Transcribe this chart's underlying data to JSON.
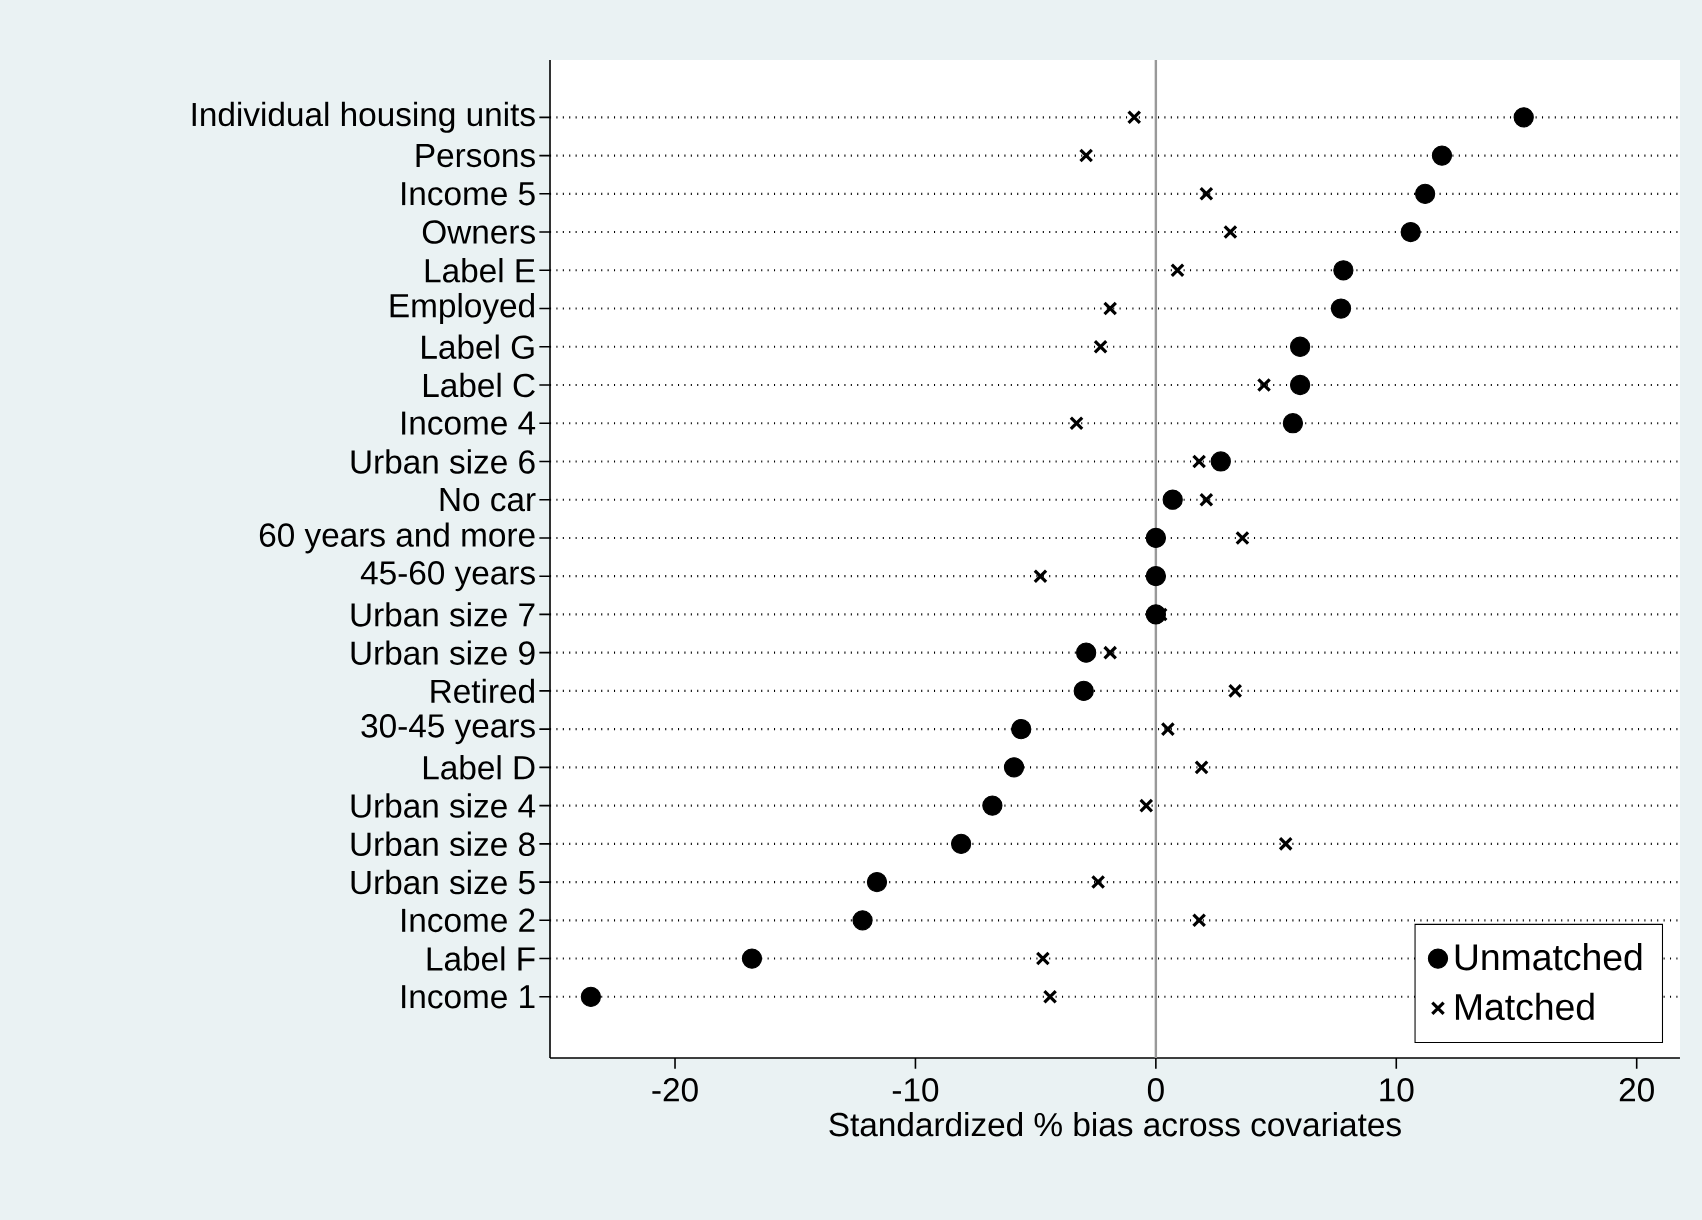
{
  "chart_data": {
    "type": "scatter",
    "orientation": "horizontal",
    "xlabel": "Standardized % bias across covariates",
    "categories": [
      "Individual housing units",
      "Persons",
      "Income 5",
      "Owners",
      "Label E",
      "Employed",
      "Label G",
      "Label C",
      "Income 4",
      "Urban size 6",
      "No car",
      "60 years and more",
      "45-60 years",
      "Urban size 7",
      "Urban size 9",
      "Retired",
      "30-45 years",
      "Label D",
      "Urban size 4",
      "Urban size 8",
      "Urban size 5",
      "Income 2",
      "Label F",
      "Income 1"
    ],
    "series": [
      {
        "name": "Unmatched",
        "color": "#000000",
        "marker": "circle",
        "values": [
          15.3,
          11.9,
          11.2,
          10.6,
          7.8,
          7.7,
          6.0,
          6.0,
          5.7,
          2.7,
          0.7,
          0.0,
          0.0,
          0.0,
          -2.9,
          -3.0,
          -5.6,
          -5.9,
          -6.8,
          -8.1,
          -11.6,
          -12.2,
          -16.8,
          -23.5
        ]
      },
      {
        "name": "Matched",
        "color": "#000000",
        "marker": "cross",
        "values": [
          -0.9,
          -2.9,
          2.1,
          3.1,
          0.9,
          -1.9,
          -2.3,
          4.5,
          -3.3,
          1.8,
          2.1,
          3.6,
          -4.8,
          0.2,
          -1.9,
          3.3,
          0.5,
          1.9,
          -0.4,
          5.4,
          -2.4,
          1.8,
          -4.7,
          -4.4
        ]
      }
    ],
    "xlim": [
      -25.2,
      21.8
    ],
    "xticks": [
      -20,
      -10,
      0,
      10,
      20
    ],
    "grid": "y",
    "legend": "bottom right",
    "ref_lines": [
      {
        "axis": "x",
        "value": 0,
        "color": "#999999"
      }
    ]
  }
}
